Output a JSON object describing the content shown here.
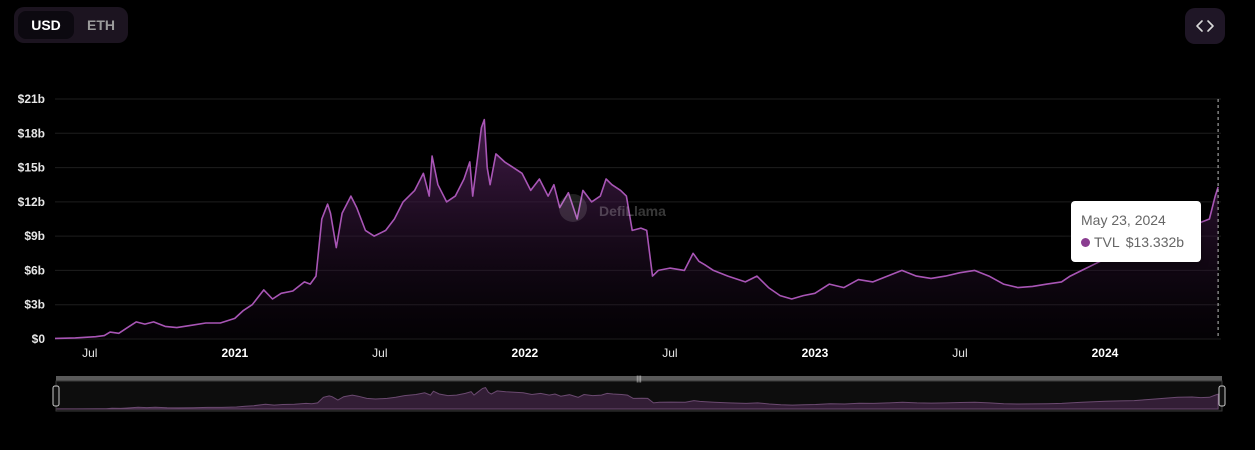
{
  "currency_toggle": {
    "options": [
      "USD",
      "ETH"
    ],
    "selected": "USD"
  },
  "embed_button": {
    "icon": "code-icon"
  },
  "watermark": "DefiLlama",
  "tooltip": {
    "date": "May 23, 2024",
    "series": "TVL",
    "value": "$13.332b"
  },
  "colors": {
    "background": "#000000",
    "line": "#a855b5",
    "fill_top": "#4b1f52",
    "dot": "#8a3d90"
  },
  "chart_data": {
    "type": "area",
    "title": "",
    "xlabel": "",
    "ylabel": "",
    "ylim": [
      0,
      21
    ],
    "y_ticks": [
      {
        "v": 0,
        "label": "$0"
      },
      {
        "v": 3,
        "label": "$3b"
      },
      {
        "v": 6,
        "label": "$6b"
      },
      {
        "v": 9,
        "label": "$9b"
      },
      {
        "v": 12,
        "label": "$12b"
      },
      {
        "v": 15,
        "label": "$15b"
      },
      {
        "v": 18,
        "label": "$18b"
      },
      {
        "v": 21,
        "label": "$21b"
      }
    ],
    "xlim": [
      2020.38,
      2024.4
    ],
    "x_ticks": [
      {
        "t": 2020.5,
        "label": "Jul",
        "major": false
      },
      {
        "t": 2021.0,
        "label": "2021",
        "major": true
      },
      {
        "t": 2021.5,
        "label": "Jul",
        "major": false
      },
      {
        "t": 2022.0,
        "label": "2022",
        "major": true
      },
      {
        "t": 2022.5,
        "label": "Jul",
        "major": false
      },
      {
        "t": 2023.0,
        "label": "2023",
        "major": true
      },
      {
        "t": 2023.5,
        "label": "Jul",
        "major": false
      },
      {
        "t": 2024.0,
        "label": "2024",
        "major": true
      }
    ],
    "grid": true,
    "legend": "none",
    "series": [
      {
        "name": "TVL",
        "points": [
          [
            2020.38,
            0.05
          ],
          [
            2020.45,
            0.1
          ],
          [
            2020.52,
            0.2
          ],
          [
            2020.55,
            0.3
          ],
          [
            2020.57,
            0.6
          ],
          [
            2020.6,
            0.5
          ],
          [
            2020.63,
            1.0
          ],
          [
            2020.66,
            1.5
          ],
          [
            2020.69,
            1.3
          ],
          [
            2020.72,
            1.5
          ],
          [
            2020.76,
            1.1
          ],
          [
            2020.8,
            1.0
          ],
          [
            2020.85,
            1.2
          ],
          [
            2020.9,
            1.4
          ],
          [
            2020.95,
            1.4
          ],
          [
            2021.0,
            1.8
          ],
          [
            2021.03,
            2.5
          ],
          [
            2021.06,
            3.0
          ],
          [
            2021.1,
            4.3
          ],
          [
            2021.13,
            3.5
          ],
          [
            2021.16,
            4.0
          ],
          [
            2021.2,
            4.2
          ],
          [
            2021.24,
            5.0
          ],
          [
            2021.26,
            4.8
          ],
          [
            2021.28,
            5.5
          ],
          [
            2021.3,
            10.5
          ],
          [
            2021.32,
            11.8
          ],
          [
            2021.33,
            11.0
          ],
          [
            2021.35,
            8.0
          ],
          [
            2021.37,
            11.0
          ],
          [
            2021.4,
            12.5
          ],
          [
            2021.42,
            11.5
          ],
          [
            2021.45,
            9.5
          ],
          [
            2021.48,
            9.0
          ],
          [
            2021.52,
            9.5
          ],
          [
            2021.55,
            10.5
          ],
          [
            2021.58,
            12.0
          ],
          [
            2021.62,
            13.0
          ],
          [
            2021.65,
            14.5
          ],
          [
            2021.67,
            12.5
          ],
          [
            2021.68,
            16.0
          ],
          [
            2021.7,
            13.5
          ],
          [
            2021.73,
            12.0
          ],
          [
            2021.76,
            12.5
          ],
          [
            2021.79,
            14.0
          ],
          [
            2021.81,
            15.5
          ],
          [
            2021.82,
            12.5
          ],
          [
            2021.83,
            14.5
          ],
          [
            2021.85,
            18.5
          ],
          [
            2021.86,
            19.2
          ],
          [
            2021.87,
            15.0
          ],
          [
            2021.88,
            13.5
          ],
          [
            2021.9,
            16.2
          ],
          [
            2021.93,
            15.5
          ],
          [
            2021.96,
            15.0
          ],
          [
            2021.99,
            14.5
          ],
          [
            2022.02,
            13.0
          ],
          [
            2022.05,
            14.0
          ],
          [
            2022.08,
            12.5
          ],
          [
            2022.1,
            13.5
          ],
          [
            2022.12,
            11.5
          ],
          [
            2022.15,
            12.8
          ],
          [
            2022.18,
            10.5
          ],
          [
            2022.2,
            13.0
          ],
          [
            2022.23,
            12.0
          ],
          [
            2022.26,
            12.5
          ],
          [
            2022.28,
            14.0
          ],
          [
            2022.3,
            13.5
          ],
          [
            2022.33,
            13.0
          ],
          [
            2022.35,
            12.5
          ],
          [
            2022.37,
            9.5
          ],
          [
            2022.4,
            9.7
          ],
          [
            2022.42,
            9.5
          ],
          [
            2022.44,
            5.5
          ],
          [
            2022.46,
            6.0
          ],
          [
            2022.5,
            6.2
          ],
          [
            2022.55,
            6.0
          ],
          [
            2022.58,
            7.5
          ],
          [
            2022.6,
            6.8
          ],
          [
            2022.62,
            6.5
          ],
          [
            2022.65,
            6.0
          ],
          [
            2022.7,
            5.5
          ],
          [
            2022.76,
            5.0
          ],
          [
            2022.8,
            5.5
          ],
          [
            2022.84,
            4.5
          ],
          [
            2022.88,
            3.8
          ],
          [
            2022.92,
            3.5
          ],
          [
            2022.96,
            3.8
          ],
          [
            2023.0,
            4.0
          ],
          [
            2023.05,
            4.8
          ],
          [
            2023.1,
            4.5
          ],
          [
            2023.15,
            5.2
          ],
          [
            2023.2,
            5.0
          ],
          [
            2023.25,
            5.5
          ],
          [
            2023.3,
            6.0
          ],
          [
            2023.35,
            5.5
          ],
          [
            2023.4,
            5.3
          ],
          [
            2023.45,
            5.5
          ],
          [
            2023.5,
            5.8
          ],
          [
            2023.55,
            6.0
          ],
          [
            2023.6,
            5.5
          ],
          [
            2023.65,
            4.8
          ],
          [
            2023.7,
            4.5
          ],
          [
            2023.75,
            4.6
          ],
          [
            2023.8,
            4.8
          ],
          [
            2023.85,
            5.0
          ],
          [
            2023.88,
            5.5
          ],
          [
            2023.92,
            6.0
          ],
          [
            2023.96,
            6.5
          ],
          [
            2024.0,
            7.0
          ],
          [
            2024.05,
            7.3
          ],
          [
            2024.1,
            7.5
          ],
          [
            2024.15,
            8.5
          ],
          [
            2024.2,
            9.5
          ],
          [
            2024.25,
            10.5
          ],
          [
            2024.3,
            10.8
          ],
          [
            2024.33,
            10.2
          ],
          [
            2024.36,
            10.5
          ],
          [
            2024.38,
            12.5
          ],
          [
            2024.39,
            13.3
          ]
        ]
      }
    ]
  }
}
